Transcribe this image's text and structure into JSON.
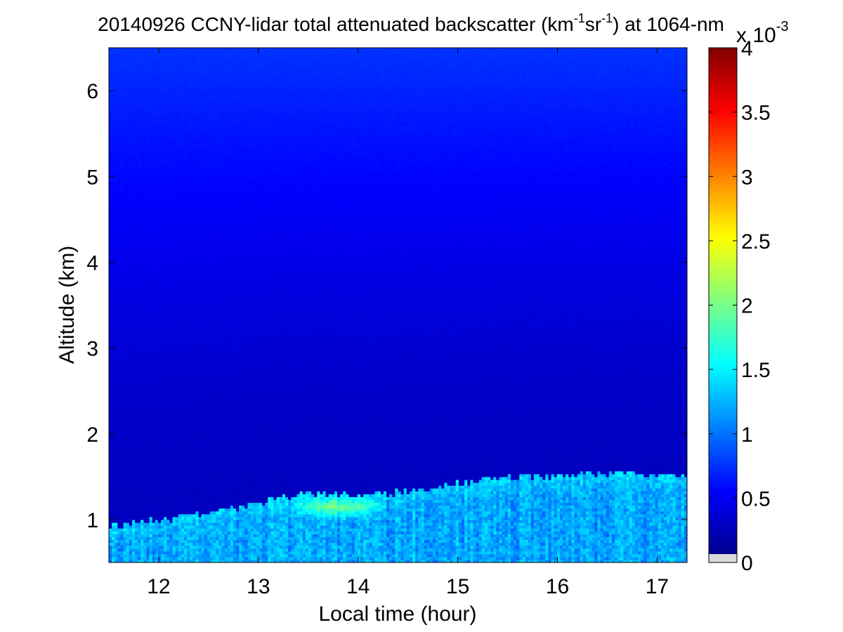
{
  "chart_data": {
    "type": "heatmap",
    "title": {
      "prefix": "20140926 CCNY-lidar total attenuated backscatter (km",
      "sup1": "-1",
      "mid": "sr",
      "sup2": "-1",
      "suffix": ") at 1064-nm"
    },
    "xlabel": "Local time (hour)",
    "ylabel": "Altitude (km)",
    "xlim": [
      11.5,
      17.3
    ],
    "ylim": [
      0.5,
      6.5
    ],
    "x_ticks": [
      12,
      13,
      14,
      15,
      16,
      17
    ],
    "y_ticks": [
      1,
      2,
      3,
      4,
      5,
      6
    ],
    "colorbar": {
      "multiplier": {
        "base": "x 10",
        "exponent": "-3"
      },
      "ticks": [
        {
          "value": 0,
          "label": "0"
        },
        {
          "value": 0.5,
          "label": "0.5"
        },
        {
          "value": 1,
          "label": "1"
        },
        {
          "value": 1.5,
          "label": "1.5"
        },
        {
          "value": 2,
          "label": "2"
        },
        {
          "value": 2.5,
          "label": "2.5"
        },
        {
          "value": 3,
          "label": "3"
        },
        {
          "value": 3.5,
          "label": "3.5"
        },
        {
          "value": 4,
          "label": "4"
        }
      ],
      "range": [
        0,
        4
      ],
      "colormap": "jet"
    },
    "field": {
      "description_units": "backscatter x 10^-3",
      "boundary_layer_top_km": [
        {
          "t": 11.5,
          "alt": 0.93
        },
        {
          "t": 12.0,
          "alt": 1.0
        },
        {
          "t": 12.5,
          "alt": 1.08
        },
        {
          "t": 13.0,
          "alt": 1.2
        },
        {
          "t": 13.5,
          "alt": 1.3
        },
        {
          "t": 14.0,
          "alt": 1.28
        },
        {
          "t": 14.5,
          "alt": 1.33
        },
        {
          "t": 15.0,
          "alt": 1.42
        },
        {
          "t": 15.5,
          "alt": 1.5
        },
        {
          "t": 16.0,
          "alt": 1.52
        },
        {
          "t": 16.5,
          "alt": 1.55
        },
        {
          "t": 17.0,
          "alt": 1.52
        },
        {
          "t": 17.3,
          "alt": 1.52
        }
      ],
      "boundary_layer_value": 1.15,
      "hotspot": {
        "t_start": 13.3,
        "t_end": 14.3,
        "alt": 1.15,
        "value": 1.9
      },
      "free_troposphere_top_value": 0.7,
      "free_troposphere_min_value": 0.25
    }
  }
}
